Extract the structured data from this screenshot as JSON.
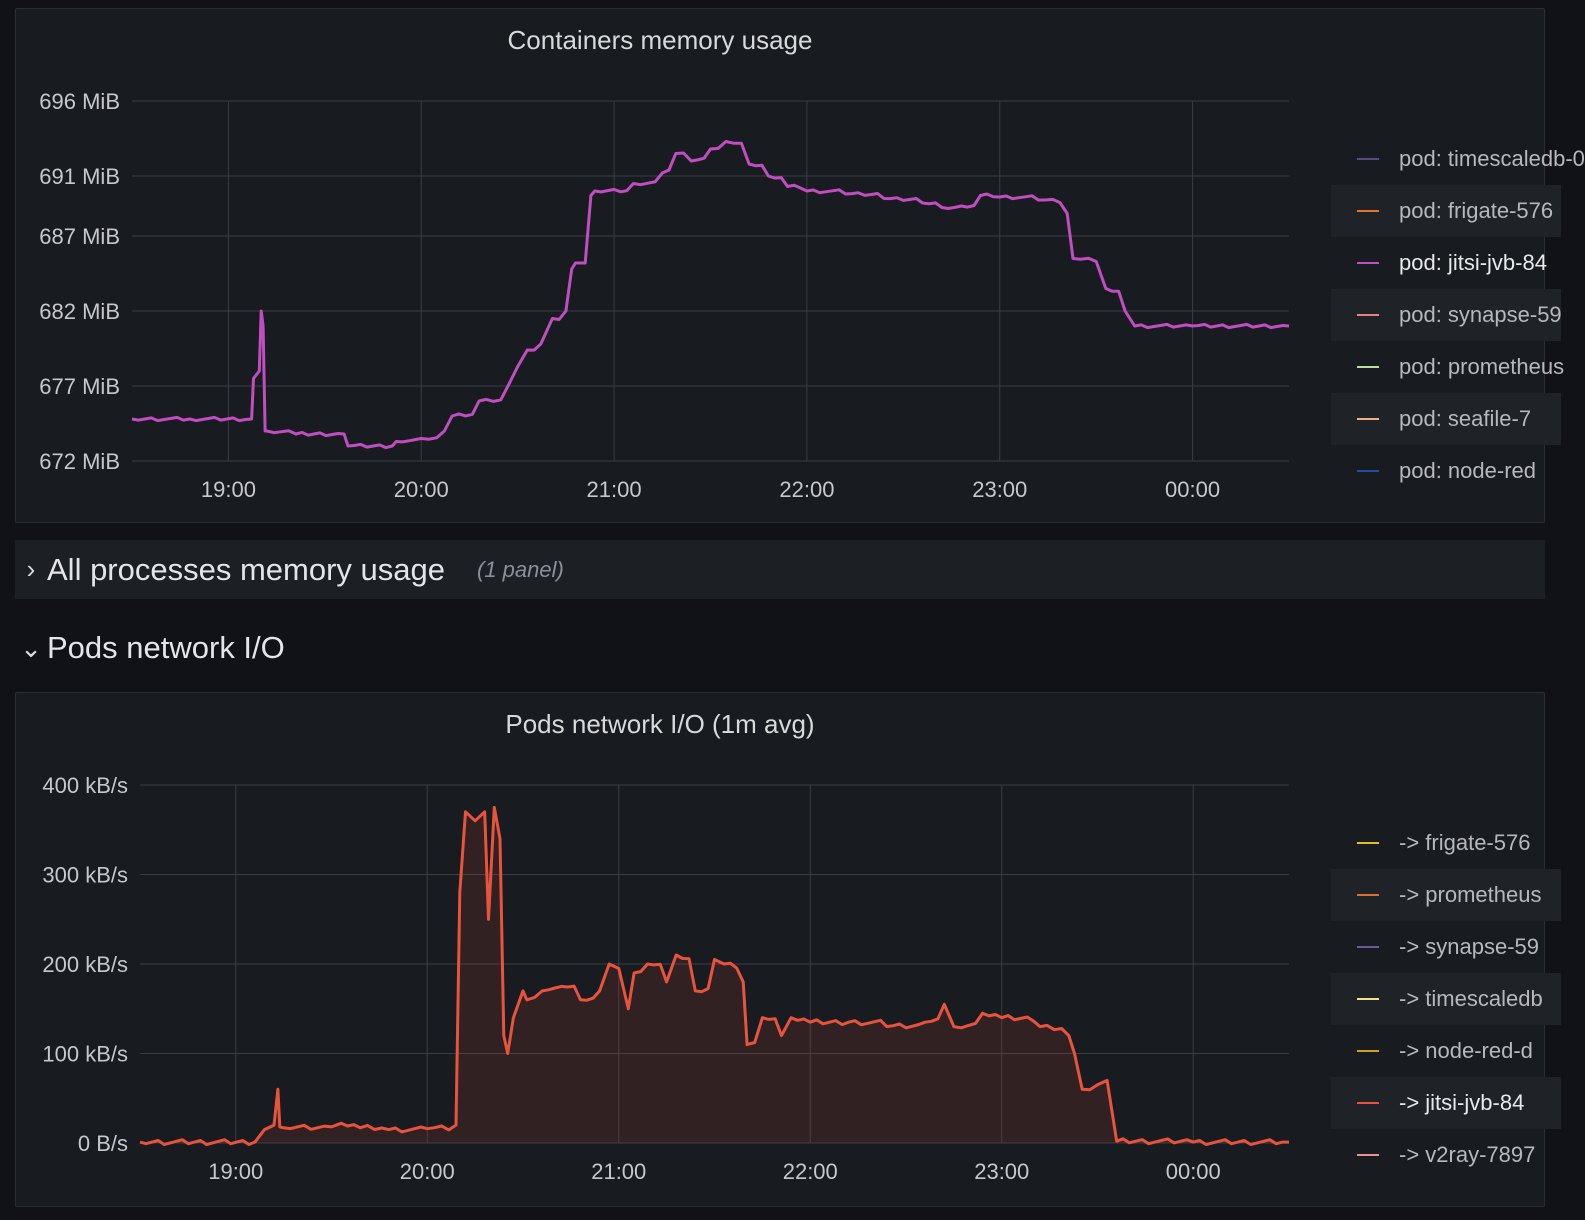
{
  "memory_panel": {
    "title": "Containers memory usage",
    "legend": [
      {
        "label": "pod: timescaledb-0",
        "color": "#5a4a8a",
        "active": false
      },
      {
        "label": "pod: frigate-576",
        "color": "#e0752d",
        "active": false
      },
      {
        "label": "pod: jitsi-jvb-84",
        "color": "#c04ec0",
        "active": true
      },
      {
        "label": "pod: synapse-59",
        "color": "#f08080",
        "active": false
      },
      {
        "label": "pod: prometheus",
        "color": "#b8e0a0",
        "active": false
      },
      {
        "label": "pod: seafile-7",
        "color": "#f0b080",
        "active": false
      },
      {
        "label": "pod: node-red",
        "color": "#1f4f9f",
        "active": false
      }
    ]
  },
  "row_all_processes": {
    "chevron": "›",
    "title": "All processes memory usage",
    "count": "(1 panel)"
  },
  "row_pods_network": {
    "chevron": "⌄",
    "title": "Pods network I/O"
  },
  "network_panel": {
    "title": "Pods network I/O (1m avg)",
    "legend": [
      {
        "label": "-> frigate-576",
        "color": "#e0c020",
        "active": false
      },
      {
        "label": "-> prometheus",
        "color": "#e07030",
        "active": false
      },
      {
        "label": "-> synapse-59",
        "color": "#6a5a9a",
        "active": false
      },
      {
        "label": "-> timescaledb",
        "color": "#f0e090",
        "active": false
      },
      {
        "label": "-> node-red-d",
        "color": "#d0a020",
        "active": false
      },
      {
        "label": "-> jitsi-jvb-84",
        "color": "#e8533e",
        "active": true
      },
      {
        "label": "-> v2ray-7897",
        "color": "#f09090",
        "active": false
      }
    ]
  },
  "chart_data": [
    {
      "type": "line",
      "title": "Containers memory usage",
      "y_unit": "MiB",
      "ylim": [
        672,
        696
      ],
      "y_ticks": [
        "696 MiB",
        "691 MiB",
        "687 MiB",
        "682 MiB",
        "677 MiB",
        "672 MiB"
      ],
      "y_tick_values": [
        696,
        691,
        687,
        682,
        677,
        672
      ],
      "x_ticks": [
        "19:00",
        "20:00",
        "21:00",
        "22:00",
        "23:00",
        "00:00"
      ],
      "x_tick_hours": [
        19,
        20,
        21,
        22,
        23,
        24
      ],
      "xlim": [
        18.5,
        24.5
      ],
      "grid": true,
      "series": [
        {
          "name": "pod: jitsi-jvb-84",
          "color": "#c04ec0",
          "x": [
            18.5,
            18.8,
            19.12,
            19.13,
            19.16,
            19.17,
            19.18,
            19.19,
            19.2,
            19.35,
            19.6,
            19.62,
            19.85,
            19.87,
            20.0,
            20.12,
            20.16,
            20.3,
            20.45,
            20.5,
            20.55,
            20.62,
            20.68,
            20.75,
            20.78,
            20.8,
            20.85,
            20.88,
            20.9,
            21.1,
            21.25,
            21.32,
            21.4,
            21.5,
            21.58,
            21.7,
            21.8,
            21.9,
            22.0,
            22.2,
            22.4,
            22.6,
            22.7,
            22.8,
            22.9,
            23.0,
            23.2,
            23.35,
            23.38,
            23.5,
            23.55,
            23.65,
            23.7,
            24.0,
            24.5
          ],
          "values": [
            674.8,
            674.8,
            674.8,
            677.5,
            678.0,
            682.0,
            681.0,
            674.0,
            674.0,
            673.8,
            673.8,
            673.0,
            673.0,
            673.3,
            673.5,
            674.0,
            675.0,
            676.0,
            677.0,
            678.3,
            679.4,
            679.8,
            681.5,
            682.0,
            684.8,
            685.2,
            685.2,
            689.7,
            690.0,
            690.5,
            691.2,
            692.5,
            692.0,
            692.8,
            693.3,
            691.8,
            691.0,
            690.3,
            690.0,
            689.8,
            689.5,
            689.2,
            688.9,
            689.0,
            689.7,
            689.6,
            689.4,
            688.5,
            685.5,
            685.3,
            683.5,
            682.0,
            681.0,
            681.0,
            681.0
          ]
        }
      ]
    },
    {
      "type": "area",
      "title": "Pods network I/O (1m avg)",
      "y_unit": "kB/s",
      "ylim": [
        0,
        400
      ],
      "y_ticks": [
        "400 kB/s",
        "300 kB/s",
        "200 kB/s",
        "100 kB/s",
        "0 B/s"
      ],
      "y_tick_values": [
        400,
        300,
        200,
        100,
        0
      ],
      "x_ticks": [
        "19:00",
        "20:00",
        "21:00",
        "22:00",
        "23:00",
        "00:00"
      ],
      "x_tick_hours": [
        19,
        20,
        21,
        22,
        23,
        24
      ],
      "xlim": [
        18.5,
        24.5
      ],
      "grid": true,
      "series": [
        {
          "name": "-> jitsi-jvb-84",
          "color": "#e8533e",
          "x": [
            18.5,
            19.1,
            19.15,
            19.2,
            19.22,
            19.23,
            19.25,
            19.5,
            19.55,
            19.65,
            19.8,
            20.0,
            20.15,
            20.17,
            20.2,
            20.25,
            20.3,
            20.32,
            20.35,
            20.38,
            20.4,
            20.42,
            20.45,
            20.5,
            20.52,
            20.6,
            20.7,
            20.8,
            20.9,
            20.95,
            21.0,
            21.05,
            21.08,
            21.15,
            21.25,
            21.3,
            21.4,
            21.5,
            21.55,
            21.65,
            21.67,
            21.75,
            21.85,
            21.9,
            22.0,
            22.2,
            22.4,
            22.6,
            22.7,
            22.75,
            22.9,
            23.0,
            23.2,
            23.35,
            23.38,
            23.42,
            23.5,
            23.55,
            23.6,
            24.0,
            24.5
          ],
          "values": [
            1,
            1,
            15,
            20,
            60,
            18,
            17,
            18,
            22,
            17,
            15,
            16,
            20,
            280,
            370,
            360,
            370,
            250,
            375,
            340,
            120,
            100,
            140,
            170,
            160,
            170,
            175,
            160,
            170,
            200,
            195,
            150,
            190,
            200,
            180,
            210,
            170,
            205,
            200,
            180,
            110,
            140,
            120,
            140,
            135,
            135,
            130,
            135,
            155,
            130,
            145,
            140,
            130,
            120,
            100,
            60,
            65,
            70,
            2,
            1,
            1
          ]
        }
      ]
    }
  ]
}
